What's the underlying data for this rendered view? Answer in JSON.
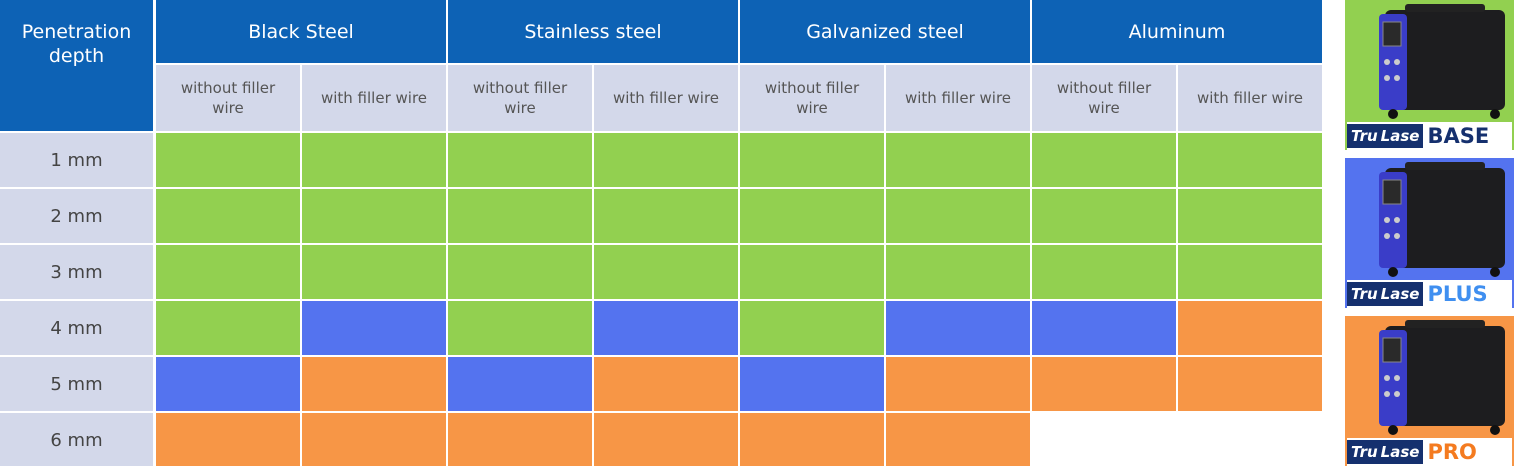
{
  "table": {
    "corner": "Penetration depth",
    "groups": [
      "Black Steel",
      "Stainless steel",
      "Galvanized steel",
      "Aluminum"
    ],
    "subheaders": [
      "without filler wire",
      "with filler wire",
      "without filler wire",
      "with filler wire",
      "without filler wire",
      "with filler wire",
      "without filler wire",
      "with filler wire"
    ],
    "rows": [
      {
        "label": "1 mm",
        "cells": [
          0,
          0,
          0,
          0,
          0,
          0,
          0,
          0
        ]
      },
      {
        "label": "2 mm",
        "cells": [
          0,
          0,
          0,
          0,
          0,
          0,
          0,
          0
        ]
      },
      {
        "label": "3 mm",
        "cells": [
          0,
          0,
          0,
          0,
          0,
          0,
          0,
          0
        ]
      },
      {
        "label": "4 mm",
        "cells": [
          0,
          1,
          0,
          1,
          0,
          1,
          1,
          2
        ]
      },
      {
        "label": "5 mm",
        "cells": [
          1,
          2,
          1,
          2,
          1,
          2,
          2,
          2
        ]
      },
      {
        "label": "6 mm",
        "cells": [
          2,
          2,
          2,
          2,
          2,
          2,
          null,
          null
        ]
      }
    ]
  },
  "products": [
    {
      "prefix": "Tru",
      "suffix": "Lase",
      "tier": "BASE",
      "color": "#92d050",
      "tier_color": "#15306e"
    },
    {
      "prefix": "Tru",
      "suffix": "Lase",
      "tier": "PLUS",
      "color": "#5473ef",
      "tier_color": "#3f8ff0"
    },
    {
      "prefix": "Tru",
      "suffix": "Lase",
      "tier": "PRO",
      "color": "#f79646",
      "tier_color": "#f47b20"
    }
  ]
}
